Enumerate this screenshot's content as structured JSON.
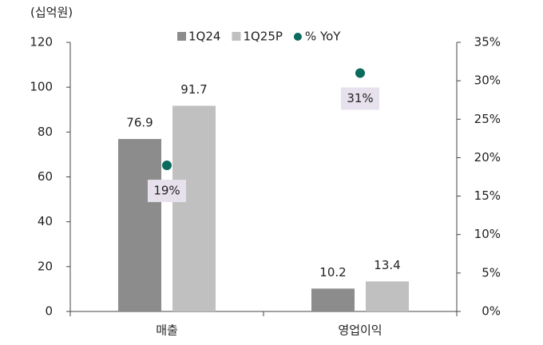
{
  "chart_data": {
    "type": "bar",
    "unit_label": "(십억원)",
    "categories": [
      "매출",
      "영업이익"
    ],
    "series": [
      {
        "name": "1Q24",
        "color": "#8c8c8c",
        "values": [
          76.9,
          10.2
        ]
      },
      {
        "name": "1Q25P",
        "color": "#c0c0c0",
        "values": [
          91.7,
          13.4
        ]
      },
      {
        "name": "% YoY",
        "color": "#0b6b5c",
        "type": "scatter",
        "axis": "y2",
        "values": [
          19,
          31
        ],
        "value_labels": [
          "19%",
          "31%"
        ]
      }
    ],
    "ylim": [
      0,
      120
    ],
    "yticks": [
      0,
      20,
      40,
      60,
      80,
      100,
      120
    ],
    "y2lim": [
      0,
      35
    ],
    "y2ticks": [
      {
        "value": 0,
        "label": "0%"
      },
      {
        "value": 5,
        "label": "5%"
      },
      {
        "value": 10,
        "label": "10%"
      },
      {
        "value": 15,
        "label": "15%"
      },
      {
        "value": 20,
        "label": "20%"
      },
      {
        "value": 25,
        "label": "25%"
      },
      {
        "value": 30,
        "label": "30%"
      },
      {
        "value": 35,
        "label": "35%"
      }
    ],
    "label_box_color": "#e6e1ec"
  }
}
